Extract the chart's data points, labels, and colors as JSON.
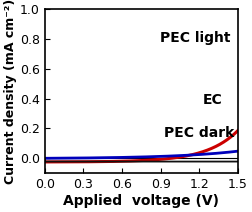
{
  "xlim": [
    0.0,
    1.5
  ],
  "ylim": [
    -0.1,
    1.0
  ],
  "xticks": [
    0.0,
    0.3,
    0.6,
    0.9,
    1.2,
    1.5
  ],
  "yticks": [
    0.0,
    0.2,
    0.4,
    0.6,
    0.8,
    1.0
  ],
  "xlabel": "Applied  voltage (V)",
  "ylabel": "Current density (mA cm⁻²)",
  "pec_light_label": "PEC light",
  "ec_label": "EC",
  "pec_dark_label": "PEC dark",
  "pec_light_color": "#cc0000",
  "ec_color": "#0000bb",
  "pec_dark_color": "#111111",
  "background_color": "#ffffff",
  "label_fontsize": 10,
  "tick_fontsize": 9,
  "annotation_fontsize": 10
}
